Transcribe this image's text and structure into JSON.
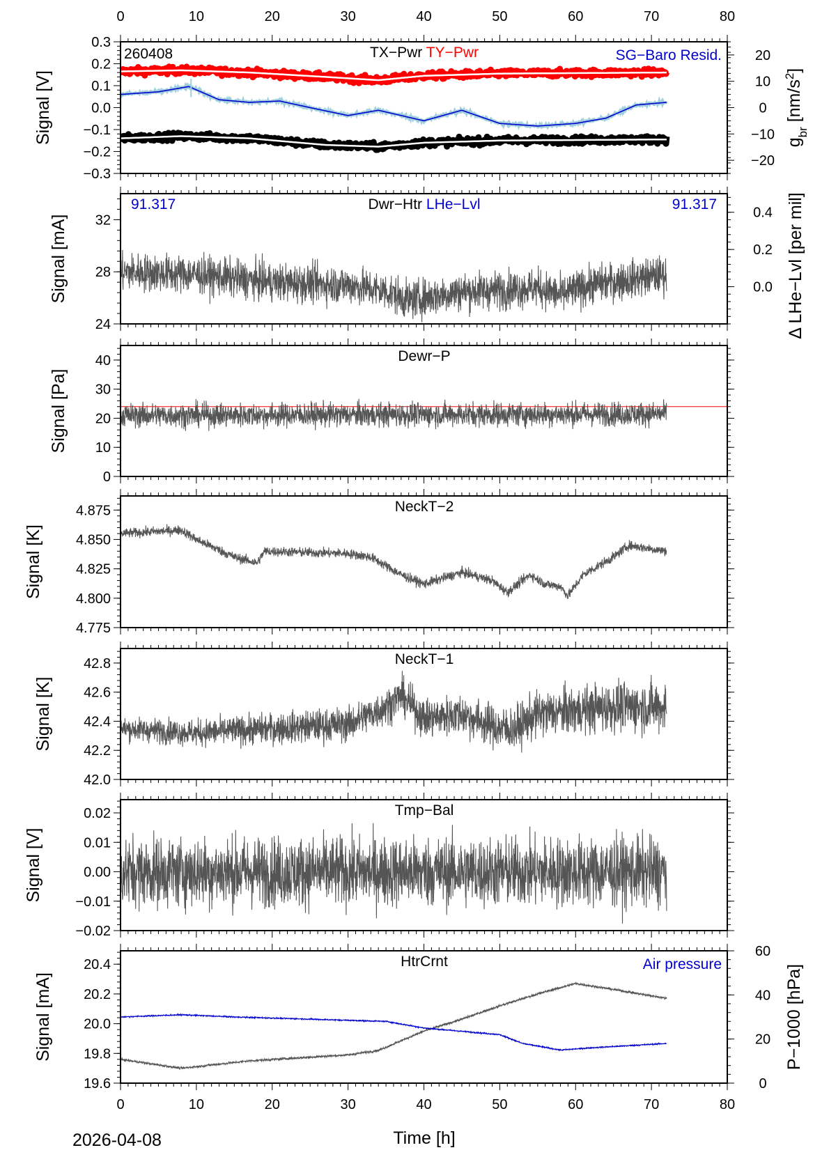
{
  "date_label": "2026-04-08",
  "xlabel": "Time [h]",
  "station_code": "260408",
  "colors": {
    "red": "#ff0000",
    "blue": "#0000cc",
    "lightblue": "#9fcfdf",
    "gray": "#555555",
    "black": "#000000"
  },
  "chart_data": {
    "type": "line",
    "xlim": [
      0,
      80
    ],
    "xticks": [
      0,
      10,
      20,
      30,
      40,
      50,
      60,
      70,
      80
    ],
    "panels": [
      {
        "title_parts": [
          {
            "text": "TX−Pwr",
            "color": "#000000"
          },
          {
            "text": "TY−Pwr",
            "color": "#ff0000"
          }
        ],
        "corner_left": "260408",
        "corner_right": {
          "text": "SG−Baro Resid.",
          "color": "#0000cc"
        },
        "ylabel": "Signal [V]",
        "ylim": [
          -0.3,
          0.3
        ],
        "yticks": [
          -0.3,
          -0.2,
          -0.1,
          0.0,
          0.1,
          0.2,
          0.3
        ],
        "ydec": 1,
        "right_axis": {
          "label_parts": [
            "g",
            "br",
            " [nm/s",
            "2",
            "]"
          ],
          "ylim": [
            -25,
            25
          ],
          "yticks": [
            -20,
            -10,
            0,
            10,
            20
          ],
          "color": "#0000cc"
        },
        "series": [
          {
            "name": "TY-Pwr",
            "style": "band",
            "color": "#ff0000",
            "noise": 0.022,
            "points": [
              [
                0,
                0.165
              ],
              [
                8,
                0.17
              ],
              [
                17,
                0.16
              ],
              [
                27,
                0.14
              ],
              [
                34,
                0.125
              ],
              [
                40,
                0.145
              ],
              [
                50,
                0.155
              ],
              [
                72,
                0.16
              ]
            ]
          },
          {
            "name": "TX-Pwr",
            "style": "band",
            "color": "#000000",
            "noise": 0.022,
            "points": [
              [
                0,
                -0.14
              ],
              [
                8,
                -0.13
              ],
              [
                17,
                -0.14
              ],
              [
                27,
                -0.17
              ],
              [
                34,
                -0.178
              ],
              [
                40,
                -0.16
              ],
              [
                50,
                -0.15
              ],
              [
                72,
                -0.145
              ]
            ]
          },
          {
            "name": "SG-Baro Resid.",
            "style": "halo",
            "axis": "right",
            "color": "#0000cc",
            "noise": 0.8,
            "points": [
              [
                0,
                5
              ],
              [
                5,
                6
              ],
              [
                9,
                8
              ],
              [
                13,
                3
              ],
              [
                17,
                2
              ],
              [
                21,
                2.5
              ],
              [
                25,
                0
              ],
              [
                30,
                -3
              ],
              [
                34,
                -1
              ],
              [
                40,
                -5
              ],
              [
                45,
                -1
              ],
              [
                50,
                -6
              ],
              [
                55,
                -7
              ],
              [
                60,
                -6
              ],
              [
                64,
                -4
              ],
              [
                68,
                1
              ],
              [
                72,
                2
              ]
            ]
          }
        ]
      },
      {
        "title_parts": [
          {
            "text": "Dwr−Htr",
            "color": "#000000"
          },
          {
            "text": "LHe−Lvl",
            "color": "#0000cc"
          }
        ],
        "value_left": "91.317",
        "value_right": "91.317",
        "ylabel": "Signal [mA]",
        "ylim": [
          24,
          34
        ],
        "yticks": [
          24,
          28,
          32
        ],
        "ydec": 0,
        "right_axis": {
          "label_parts": [
            "Δ LHe−Lvl [per mil]"
          ],
          "ylim": [
            -0.2,
            0.5
          ],
          "yticks": [
            0.0,
            0.2,
            0.4
          ],
          "color": "#000000",
          "dec": 1
        },
        "series": [
          {
            "name": "Dwr-Htr",
            "style": "line",
            "color": "#555555",
            "noise": 1.6,
            "points": [
              [
                0,
                28
              ],
              [
                10,
                27.8
              ],
              [
                20,
                27.2
              ],
              [
                30,
                27
              ],
              [
                35,
                26.5
              ],
              [
                38,
                25.8
              ],
              [
                45,
                26.5
              ],
              [
                50,
                26.6
              ],
              [
                55,
                26.8
              ],
              [
                58,
                26.2
              ],
              [
                62,
                27
              ],
              [
                72,
                27.8
              ]
            ]
          }
        ]
      },
      {
        "title_parts": [
          {
            "text": "Dewr−P",
            "color": "#000000"
          }
        ],
        "ylabel": "Signal [Pa]",
        "ylim": [
          0,
          45
        ],
        "yticks": [
          0,
          10,
          20,
          30,
          40
        ],
        "ydec": 0,
        "hline": {
          "value": 24,
          "color": "#ff0000"
        },
        "series": [
          {
            "name": "Dewr-P",
            "style": "line",
            "color": "#555555",
            "noise": 4.5,
            "points": [
              [
                0,
                21
              ],
              [
                72,
                21.5
              ]
            ]
          }
        ]
      },
      {
        "title_parts": [
          {
            "text": "NeckT−2",
            "color": "#000000"
          }
        ],
        "ylabel": "Signal [K]",
        "ylim": [
          4.775,
          4.887
        ],
        "yticks": [
          4.775,
          4.8,
          4.825,
          4.85,
          4.875
        ],
        "ydec": 3,
        "series": [
          {
            "name": "NeckT-2",
            "style": "line",
            "color": "#555555",
            "noise": 0.0045,
            "points": [
              [
                0,
                4.855
              ],
              [
                8,
                4.858
              ],
              [
                10,
                4.85
              ],
              [
                15,
                4.835
              ],
              [
                18,
                4.83
              ],
              [
                19,
                4.84
              ],
              [
                30,
                4.838
              ],
              [
                33,
                4.835
              ],
              [
                37,
                4.82
              ],
              [
                40,
                4.812
              ],
              [
                45,
                4.822
              ],
              [
                49,
                4.815
              ],
              [
                51,
                4.805
              ],
              [
                54,
                4.82
              ],
              [
                56,
                4.812
              ],
              [
                58,
                4.81
              ],
              [
                59,
                4.802
              ],
              [
                61,
                4.82
              ],
              [
                65,
                4.835
              ],
              [
                67,
                4.845
              ],
              [
                72,
                4.84
              ]
            ]
          }
        ]
      },
      {
        "title_parts": [
          {
            "text": "NeckT−1",
            "color": "#000000"
          }
        ],
        "ylabel": "Signal [K]",
        "ylim": [
          42.0,
          42.9
        ],
        "yticks": [
          42.0,
          42.2,
          42.4,
          42.6,
          42.8
        ],
        "ydec": 1,
        "series": [
          {
            "name": "NeckT-1",
            "style": "line",
            "color": "#555555",
            "noise": 0.14,
            "points": [
              [
                0,
                42.35
              ],
              [
                10,
                42.32
              ],
              [
                20,
                42.35
              ],
              [
                30,
                42.38
              ],
              [
                35,
                42.5
              ],
              [
                37,
                42.58
              ],
              [
                40,
                42.42
              ],
              [
                45,
                42.45
              ],
              [
                50,
                42.35
              ],
              [
                52,
                42.35
              ],
              [
                55,
                42.45
              ],
              [
                65,
                42.5
              ],
              [
                72,
                42.5
              ]
            ]
          }
        ]
      },
      {
        "title_parts": [
          {
            "text": "Tmp−Bal",
            "color": "#000000"
          }
        ],
        "ylabel": "Signal [V]",
        "ylim": [
          -0.02,
          0.0245
        ],
        "yticks": [
          -0.02,
          -0.01,
          0.0,
          0.01,
          0.02
        ],
        "ydec": 2,
        "series": [
          {
            "name": "Tmp-Bal",
            "style": "line",
            "color": "#555555",
            "noise": 0.013,
            "points": [
              [
                0,
                0
              ],
              [
                72,
                0
              ]
            ]
          }
        ]
      },
      {
        "title_parts": [
          {
            "text": "HtrCrnt",
            "color": "#000000"
          }
        ],
        "corner_right": {
          "text": "Air pressure",
          "color": "#0000cc"
        },
        "ylabel": "Signal [mA]",
        "ylim": [
          19.6,
          20.49
        ],
        "yticks": [
          19.6,
          19.8,
          20.0,
          20.2,
          20.4
        ],
        "ydec": 1,
        "right_axis": {
          "label_parts": [
            "P−1000 [hPa]"
          ],
          "ylim": [
            0,
            60
          ],
          "yticks": [
            0,
            20,
            40,
            60
          ],
          "color": "#0000cc",
          "dec": 0
        },
        "series": [
          {
            "name": "HtrCrnt",
            "style": "line",
            "color": "#555555",
            "noise": 0.008,
            "points": [
              [
                0,
                19.76
              ],
              [
                8,
                19.7
              ],
              [
                17,
                19.75
              ],
              [
                30,
                19.79
              ],
              [
                34,
                19.82
              ],
              [
                40,
                19.95
              ],
              [
                45,
                20.03
              ],
              [
                50,
                20.12
              ],
              [
                55,
                20.2
              ],
              [
                60,
                20.27
              ],
              [
                65,
                20.23
              ],
              [
                72,
                20.17
              ]
            ]
          },
          {
            "name": "Air pressure",
            "style": "line",
            "axis": "right",
            "color": "#0000cc",
            "noise": 0.3,
            "points": [
              [
                0,
                30
              ],
              [
                8,
                31
              ],
              [
                15,
                30
              ],
              [
                35,
                28
              ],
              [
                40,
                25
              ],
              [
                50,
                22
              ],
              [
                53,
                18
              ],
              [
                58,
                15
              ],
              [
                62,
                16
              ],
              [
                72,
                18
              ]
            ]
          }
        ]
      }
    ]
  }
}
